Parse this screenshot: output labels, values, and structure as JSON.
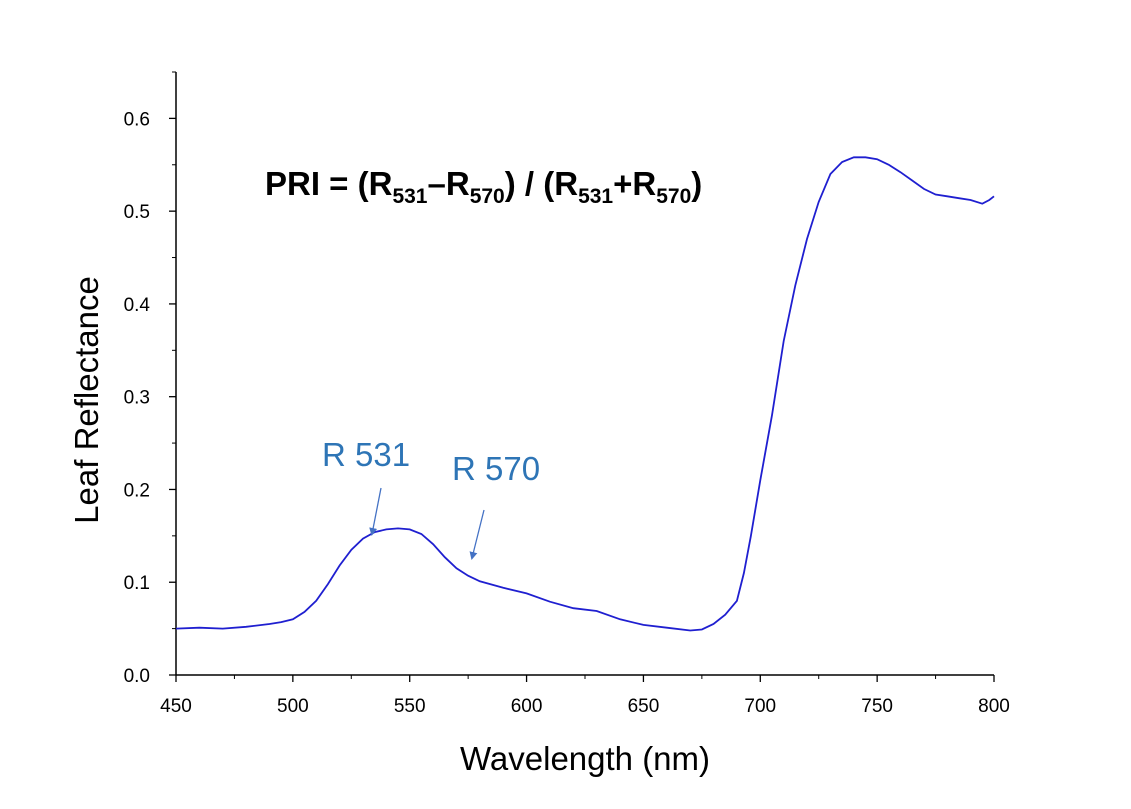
{
  "chart_data": {
    "type": "line",
    "title": "",
    "xlabel": "Wavelength (nm)",
    "ylabel": "Leaf Reflectance",
    "xlim": [
      450,
      800
    ],
    "ylim": [
      0,
      0.65
    ],
    "x_ticks": [
      "450",
      "500",
      "550",
      "600",
      "650",
      "700",
      "750",
      "800"
    ],
    "y_ticks": [
      "0.0",
      "0.1",
      "0.2",
      "0.3",
      "0.4",
      "0.5",
      "0.6"
    ],
    "grid": false,
    "legend": "none",
    "formula": {
      "prefix": "PRI = (R",
      "sub1": "531",
      "mid1": "–R",
      "sub2": "570",
      "mid2": ") / (R",
      "sub3": "531",
      "mid3": "+R",
      "sub4": "570",
      "suffix": ")"
    },
    "annotations": [
      {
        "text": "R 531",
        "x": 531
      },
      {
        "text": "R 570",
        "x": 570
      }
    ],
    "line_color": "#1f1fd0",
    "annotation_color": "#2e75b6",
    "series": [
      {
        "x": [
          450,
          460,
          470,
          480,
          490,
          495,
          500,
          505,
          510,
          515,
          520,
          525,
          530,
          535,
          540,
          545,
          550,
          555,
          560,
          565,
          570,
          575,
          580,
          590,
          600,
          610,
          620,
          630,
          640,
          650,
          660,
          670,
          675,
          680,
          685,
          690,
          693,
          696,
          700,
          705,
          710,
          715,
          720,
          725,
          730,
          735,
          740,
          745,
          750,
          755,
          760,
          765,
          770,
          775,
          780,
          785,
          790,
          795,
          798,
          800
        ],
        "y": [
          0.05,
          0.051,
          0.05,
          0.052,
          0.055,
          0.057,
          0.06,
          0.068,
          0.08,
          0.098,
          0.118,
          0.135,
          0.147,
          0.154,
          0.157,
          0.158,
          0.157,
          0.152,
          0.141,
          0.127,
          0.115,
          0.107,
          0.101,
          0.094,
          0.088,
          0.079,
          0.072,
          0.069,
          0.06,
          0.054,
          0.051,
          0.048,
          0.049,
          0.055,
          0.065,
          0.08,
          0.11,
          0.15,
          0.21,
          0.28,
          0.36,
          0.42,
          0.47,
          0.51,
          0.54,
          0.553,
          0.558,
          0.558,
          0.556,
          0.55,
          0.542,
          0.533,
          0.524,
          0.518,
          0.516,
          0.514,
          0.512,
          0.508,
          0.512,
          0.516
        ]
      }
    ]
  }
}
